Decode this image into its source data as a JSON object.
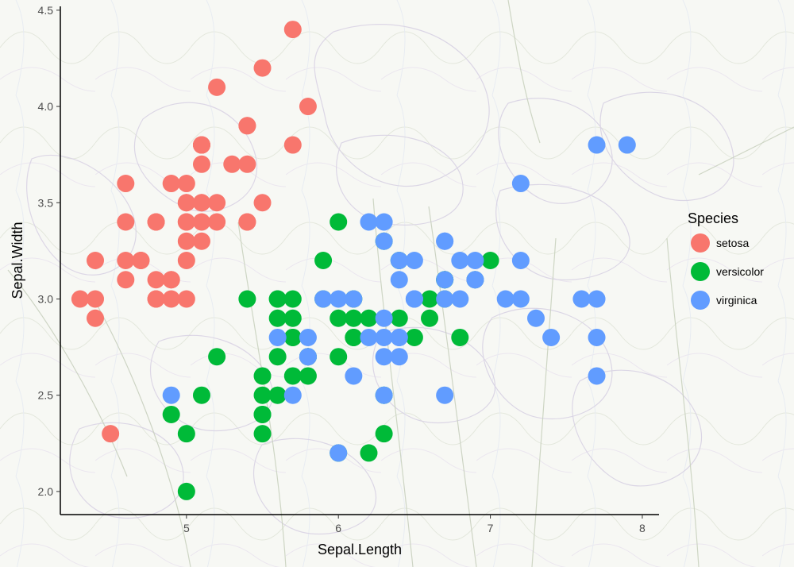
{
  "chart_data": {
    "type": "scatter",
    "xlabel": "Sepal.Length",
    "ylabel": "Sepal.Width",
    "xlim": [
      4.17,
      8.11
    ],
    "ylim": [
      1.88,
      4.52
    ],
    "x_ticks": [
      5,
      6,
      7,
      8
    ],
    "y_ticks": [
      "2.0",
      "2.5",
      "3.0",
      "3.5",
      "4.0",
      "4.5"
    ],
    "grid": false,
    "background": "illustration of iris flowers (decorative line drawing)",
    "legend": {
      "title": "Species",
      "position": "right"
    },
    "series": [
      {
        "name": "setosa",
        "color": "#F8766D",
        "points": [
          [
            5.1,
            3.5
          ],
          [
            4.9,
            3.0
          ],
          [
            4.7,
            3.2
          ],
          [
            4.6,
            3.1
          ],
          [
            5.0,
            3.6
          ],
          [
            5.4,
            3.9
          ],
          [
            4.6,
            3.4
          ],
          [
            5.0,
            3.4
          ],
          [
            4.4,
            2.9
          ],
          [
            4.9,
            3.1
          ],
          [
            5.4,
            3.7
          ],
          [
            4.8,
            3.4
          ],
          [
            4.8,
            3.0
          ],
          [
            4.3,
            3.0
          ],
          [
            5.8,
            4.0
          ],
          [
            5.7,
            4.4
          ],
          [
            5.4,
            3.9
          ],
          [
            5.1,
            3.5
          ],
          [
            5.7,
            3.8
          ],
          [
            5.1,
            3.8
          ],
          [
            5.4,
            3.4
          ],
          [
            5.1,
            3.7
          ],
          [
            4.6,
            3.6
          ],
          [
            5.1,
            3.3
          ],
          [
            4.8,
            3.4
          ],
          [
            5.0,
            3.0
          ],
          [
            5.0,
            3.4
          ],
          [
            5.2,
            3.5
          ],
          [
            5.2,
            3.4
          ],
          [
            4.7,
            3.2
          ],
          [
            4.8,
            3.1
          ],
          [
            5.4,
            3.4
          ],
          [
            5.2,
            4.1
          ],
          [
            5.5,
            4.2
          ],
          [
            4.9,
            3.1
          ],
          [
            5.0,
            3.2
          ],
          [
            5.5,
            3.5
          ],
          [
            4.9,
            3.6
          ],
          [
            4.4,
            3.0
          ],
          [
            5.1,
            3.4
          ],
          [
            5.0,
            3.5
          ],
          [
            4.5,
            2.3
          ],
          [
            4.4,
            3.2
          ],
          [
            5.0,
            3.5
          ],
          [
            5.1,
            3.8
          ],
          [
            4.8,
            3.0
          ],
          [
            5.1,
            3.8
          ],
          [
            4.6,
            3.2
          ],
          [
            5.3,
            3.7
          ],
          [
            5.0,
            3.3
          ]
        ]
      },
      {
        "name": "versicolor",
        "color": "#00BA38",
        "points": [
          [
            7.0,
            3.2
          ],
          [
            6.4,
            3.2
          ],
          [
            6.9,
            3.1
          ],
          [
            5.5,
            2.3
          ],
          [
            6.5,
            2.8
          ],
          [
            5.7,
            2.8
          ],
          [
            6.3,
            3.3
          ],
          [
            4.9,
            2.4
          ],
          [
            6.6,
            2.9
          ],
          [
            5.2,
            2.7
          ],
          [
            5.0,
            2.0
          ],
          [
            5.9,
            3.0
          ],
          [
            6.0,
            2.2
          ],
          [
            6.1,
            2.9
          ],
          [
            5.6,
            2.9
          ],
          [
            6.7,
            3.1
          ],
          [
            5.6,
            3.0
          ],
          [
            5.8,
            2.7
          ],
          [
            6.2,
            2.2
          ],
          [
            5.6,
            2.5
          ],
          [
            5.9,
            3.2
          ],
          [
            6.1,
            2.8
          ],
          [
            6.3,
            2.5
          ],
          [
            6.1,
            2.8
          ],
          [
            6.4,
            2.9
          ],
          [
            6.6,
            3.0
          ],
          [
            6.8,
            2.8
          ],
          [
            6.7,
            3.0
          ],
          [
            6.0,
            2.9
          ],
          [
            5.7,
            2.6
          ],
          [
            5.5,
            2.4
          ],
          [
            5.5,
            2.4
          ],
          [
            5.8,
            2.7
          ],
          [
            6.0,
            2.7
          ],
          [
            5.4,
            3.0
          ],
          [
            6.0,
            3.4
          ],
          [
            6.7,
            3.1
          ],
          [
            6.3,
            2.3
          ],
          [
            5.6,
            3.0
          ],
          [
            5.5,
            2.5
          ],
          [
            5.5,
            2.6
          ],
          [
            6.1,
            3.0
          ],
          [
            5.8,
            2.6
          ],
          [
            5.0,
            2.3
          ],
          [
            5.6,
            2.7
          ],
          [
            5.7,
            3.0
          ],
          [
            5.7,
            2.9
          ],
          [
            6.2,
            2.9
          ],
          [
            5.1,
            2.5
          ],
          [
            5.7,
            2.8
          ]
        ]
      },
      {
        "name": "virginica",
        "color": "#619CFF",
        "points": [
          [
            6.3,
            3.3
          ],
          [
            5.8,
            2.7
          ],
          [
            7.1,
            3.0
          ],
          [
            6.3,
            2.9
          ],
          [
            6.5,
            3.0
          ],
          [
            7.6,
            3.0
          ],
          [
            4.9,
            2.5
          ],
          [
            7.3,
            2.9
          ],
          [
            6.7,
            2.5
          ],
          [
            7.2,
            3.6
          ],
          [
            6.5,
            3.2
          ],
          [
            6.4,
            2.7
          ],
          [
            6.8,
            3.0
          ],
          [
            5.7,
            2.5
          ],
          [
            5.8,
            2.8
          ],
          [
            6.4,
            3.2
          ],
          [
            6.5,
            3.0
          ],
          [
            7.7,
            3.8
          ],
          [
            7.7,
            2.6
          ],
          [
            6.0,
            2.2
          ],
          [
            6.9,
            3.2
          ],
          [
            5.6,
            2.8
          ],
          [
            7.7,
            2.8
          ],
          [
            6.3,
            2.7
          ],
          [
            6.7,
            3.3
          ],
          [
            7.2,
            3.2
          ],
          [
            6.2,
            2.8
          ],
          [
            6.1,
            3.0
          ],
          [
            6.4,
            2.8
          ],
          [
            7.2,
            3.0
          ],
          [
            7.4,
            2.8
          ],
          [
            7.9,
            3.8
          ],
          [
            6.4,
            2.8
          ],
          [
            6.3,
            2.8
          ],
          [
            6.1,
            2.6
          ],
          [
            7.7,
            3.0
          ],
          [
            6.3,
            3.4
          ],
          [
            6.4,
            3.1
          ],
          [
            6.0,
            3.0
          ],
          [
            6.9,
            3.1
          ],
          [
            6.7,
            3.1
          ],
          [
            6.9,
            3.1
          ],
          [
            5.8,
            2.7
          ],
          [
            6.8,
            3.2
          ],
          [
            6.7,
            3.3
          ],
          [
            6.7,
            3.0
          ],
          [
            6.3,
            2.5
          ],
          [
            6.5,
            3.0
          ],
          [
            6.2,
            3.4
          ],
          [
            5.9,
            3.0
          ]
        ]
      }
    ]
  }
}
